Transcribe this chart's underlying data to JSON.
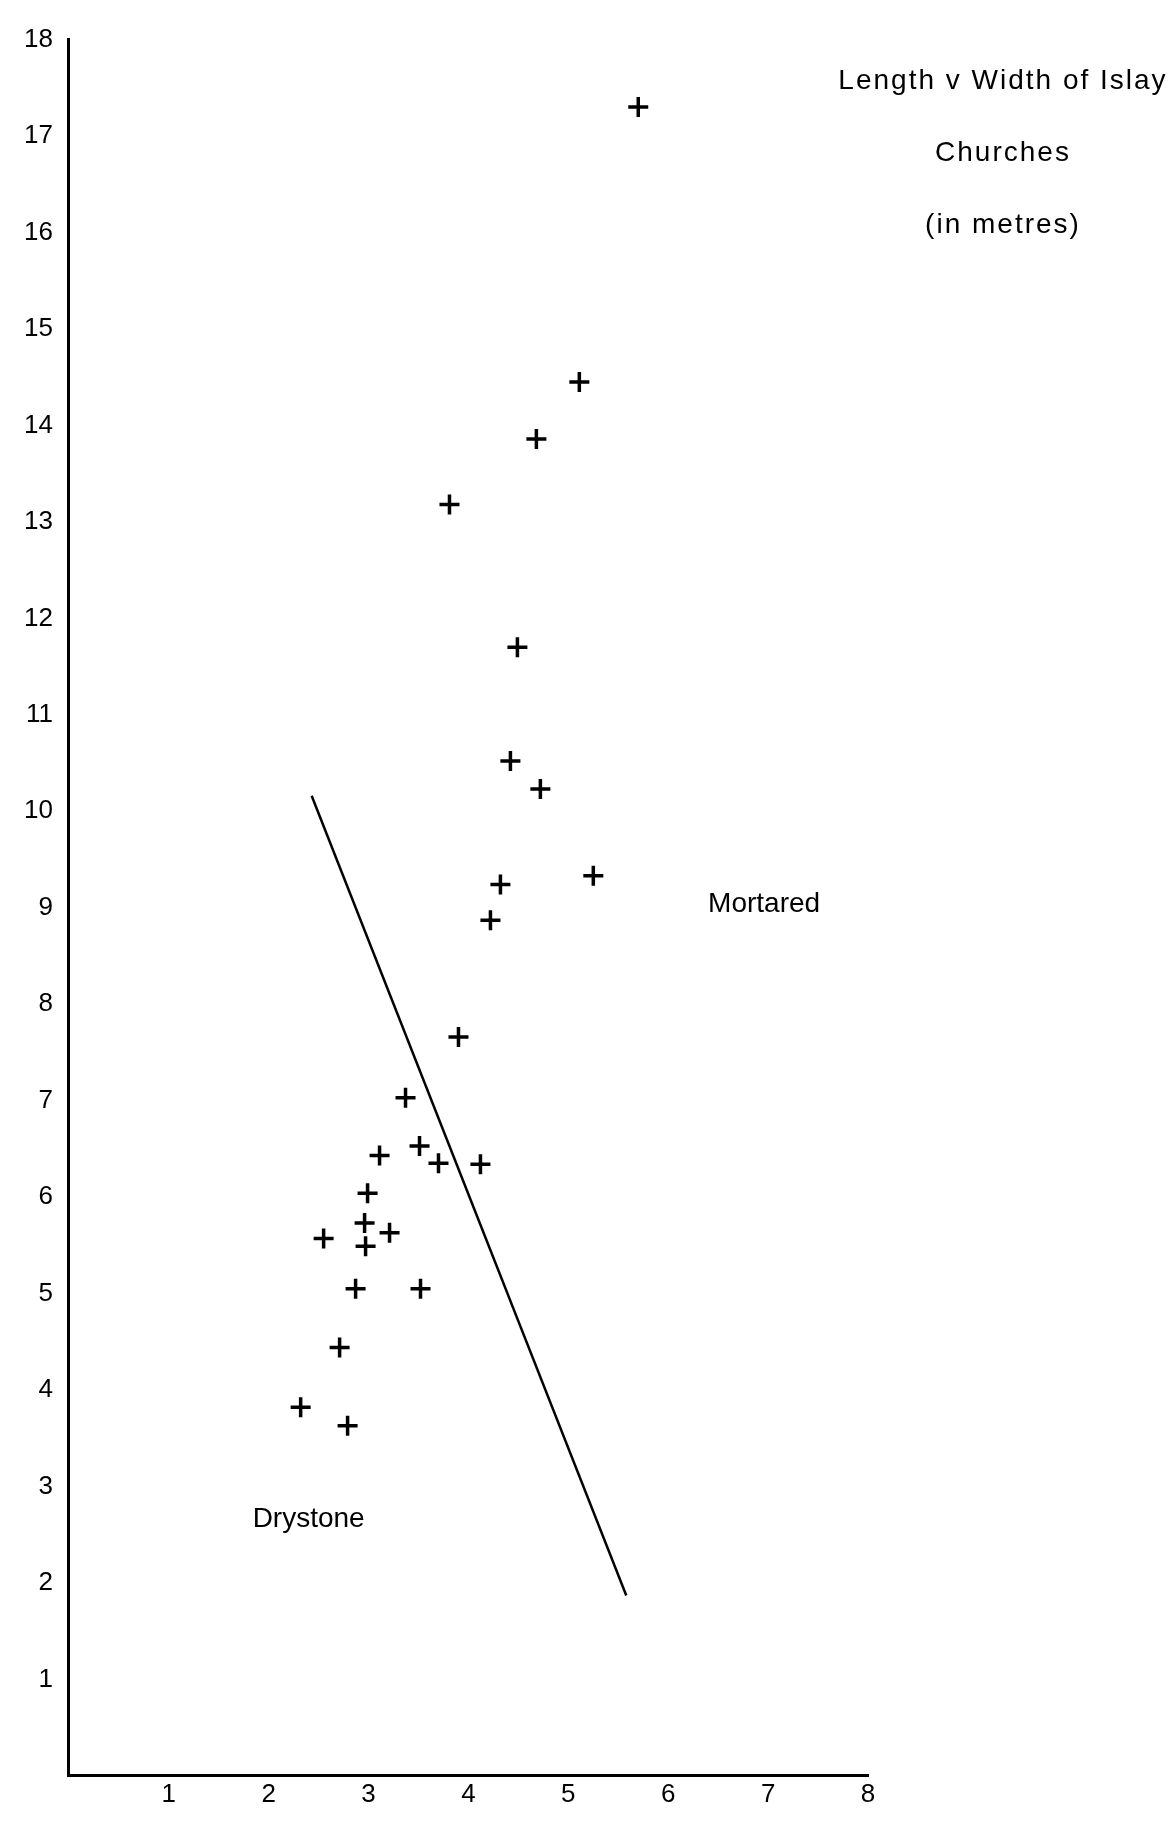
{
  "chart_data": {
    "type": "scatter",
    "title": "Length v Width of Islay Churches",
    "subtitle": "(in metres)",
    "series": [
      {
        "color": "#000000",
        "marker": "cross",
        "x": [
          5.7,
          5.11,
          4.68,
          3.81,
          4.49,
          4.42,
          4.72,
          5.25,
          4.32,
          4.22,
          3.9,
          3.37,
          3.51,
          3.11,
          3.7,
          4.12,
          2.99,
          2.96,
          3.21,
          2.55,
          2.97,
          2.87,
          3.52,
          2.71,
          2.32,
          2.79
        ],
        "values": [
          17.3,
          14.45,
          13.86,
          13.18,
          11.7,
          10.52,
          10.23,
          9.33,
          9.24,
          8.87,
          7.66,
          7.03,
          6.53,
          6.43,
          6.35,
          6.34,
          6.04,
          5.73,
          5.63,
          5.57,
          5.49,
          5.05,
          5.05,
          4.44,
          3.82,
          3.63
        ]
      },
      {
        "type": "line",
        "color": "#000000",
        "marker": "none",
        "line_style": "solid",
        "x": [
          2.43,
          5.58
        ],
        "values": [
          10.16,
          1.87
        ]
      }
    ],
    "annotations": [
      "Mortared",
      "Drystone"
    ],
    "xlim": [
      0,
      8
    ],
    "ylim": [
      0,
      18
    ],
    "xticks": [
      1,
      2,
      3,
      4,
      5,
      6,
      7,
      8
    ],
    "yticks": [
      1,
      2,
      3,
      4,
      5,
      6,
      7,
      8,
      9,
      10,
      11,
      12,
      13,
      14,
      15,
      16,
      17,
      18
    ],
    "grid": false,
    "legend": false
  }
}
